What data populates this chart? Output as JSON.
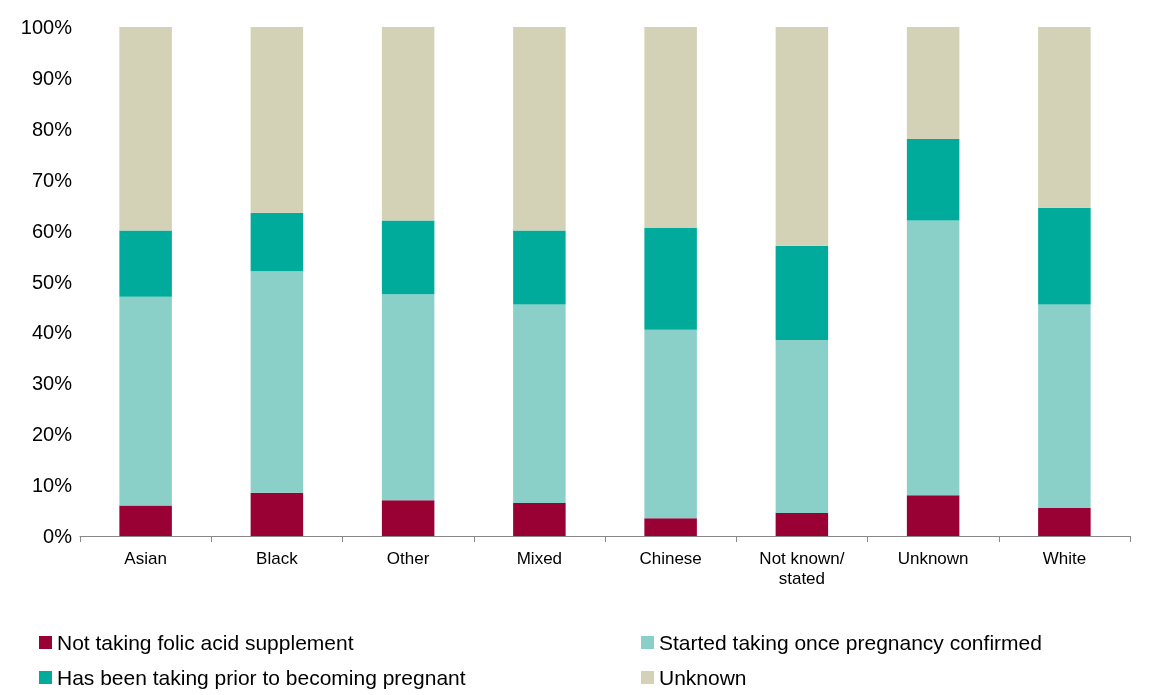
{
  "chart_data": {
    "type": "bar",
    "stacked": true,
    "categories": [
      "Asian",
      "Black",
      "Other",
      "Mixed",
      "Chinese",
      "Not known/stated",
      "Unknown",
      "White"
    ],
    "series": [
      {
        "name": "Not taking folic acid supplement",
        "color": "#990033",
        "values": [
          6,
          8.5,
          7,
          6.5,
          3.5,
          4.5,
          8,
          5.5
        ]
      },
      {
        "name": "Started taking once pregnancy confirmed",
        "color": "#8ad0c9",
        "values": [
          41,
          43.5,
          40.5,
          39,
          37,
          34,
          54,
          40
        ]
      },
      {
        "name": "Has been taking prior to becoming pregnant",
        "color": "#00ab9b",
        "values": [
          13,
          11.5,
          14.5,
          14.5,
          20,
          18.5,
          16,
          19
        ]
      },
      {
        "name": "Unknown",
        "color": "#d3d1b6",
        "values": [
          40,
          36.5,
          38,
          40,
          39.5,
          43,
          22,
          35.5
        ]
      }
    ],
    "ylim": [
      0,
      100
    ],
    "yticks": [
      {
        "value": 0,
        "label": "0%"
      },
      {
        "value": 10,
        "label": "10%"
      },
      {
        "value": 20,
        "label": "20%"
      },
      {
        "value": 30,
        "label": "30%"
      },
      {
        "value": 40,
        "label": "40%"
      },
      {
        "value": 50,
        "label": "50%"
      },
      {
        "value": 60,
        "label": "60%"
      },
      {
        "value": 70,
        "label": "70%"
      },
      {
        "value": 80,
        "label": "80%"
      },
      {
        "value": 90,
        "label": "90%"
      },
      {
        "value": 100,
        "label": "100%"
      }
    ],
    "grid": false,
    "legend": "bottom"
  }
}
